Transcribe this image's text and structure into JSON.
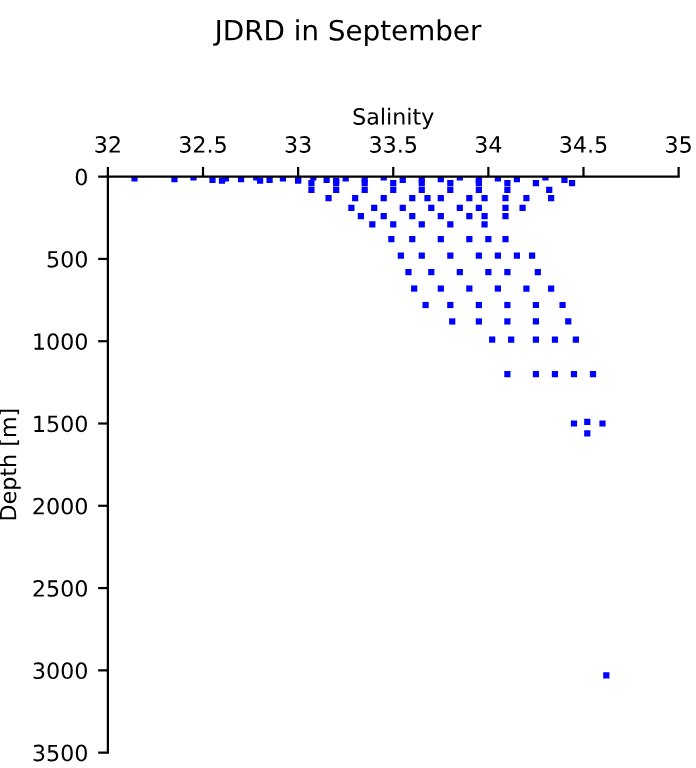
{
  "chart_data": {
    "type": "scatter",
    "title": "JDRD in September",
    "xlabel": "Salinity",
    "ylabel": "Depth [m]",
    "xlim": [
      32,
      35
    ],
    "xticks": [
      32,
      32.5,
      33,
      33.5,
      34,
      34.5,
      35
    ],
    "ylim": [
      3500,
      0
    ],
    "yticks": [
      0,
      500,
      1000,
      1500,
      2000,
      2500,
      3000,
      3500
    ],
    "marker": "square",
    "grid": false,
    "legend": false,
    "series": [
      {
        "color": "#0000ff",
        "x": [
          32.14,
          32.35,
          32.45,
          32.55,
          32.62,
          32.7,
          32.78,
          32.85,
          32.92,
          33.0,
          33.08,
          33.15,
          33.25,
          33.35,
          33.45,
          33.55,
          33.65,
          33.75,
          33.85,
          33.95,
          34.05,
          34.15,
          34.3,
          34.4,
          32.6,
          32.8,
          33.0,
          33.2,
          33.07,
          33.2,
          33.35,
          33.5,
          33.65,
          33.8,
          33.95,
          34.1,
          34.25,
          34.44,
          33.07,
          33.2,
          33.35,
          33.5,
          33.65,
          33.8,
          33.95,
          34.1,
          34.32,
          33.16,
          33.3,
          33.45,
          33.6,
          33.68,
          33.75,
          33.9,
          33.98,
          34.09,
          34.2,
          34.33,
          33.28,
          33.4,
          33.55,
          33.7,
          33.85,
          33.95,
          34.09,
          34.18,
          33.33,
          33.45,
          33.6,
          33.75,
          33.9,
          33.98,
          34.09,
          33.39,
          33.5,
          33.65,
          33.8,
          33.98,
          33.49,
          33.6,
          33.75,
          33.9,
          34.0,
          34.09,
          33.54,
          33.65,
          33.8,
          33.95,
          34.05,
          34.15,
          34.23,
          33.58,
          33.7,
          33.85,
          34.0,
          34.1,
          34.26,
          33.61,
          33.75,
          33.9,
          34.05,
          34.2,
          34.33,
          33.67,
          33.8,
          33.95,
          34.1,
          34.25,
          34.39,
          33.81,
          33.95,
          34.1,
          34.25,
          34.42,
          34.02,
          34.12,
          34.25,
          34.35,
          34.46,
          34.1,
          34.25,
          34.35,
          34.45,
          34.55,
          34.45,
          34.52,
          34.6,
          34.52,
          34.62
        ],
        "values": [
          10,
          15,
          5,
          20,
          10,
          15,
          5,
          20,
          10,
          15,
          5,
          20,
          10,
          15,
          5,
          20,
          10,
          15,
          5,
          20,
          10,
          15,
          5,
          20,
          25,
          25,
          25,
          25,
          40,
          40,
          40,
          40,
          40,
          40,
          40,
          40,
          40,
          40,
          80,
          80,
          80,
          80,
          80,
          80,
          80,
          80,
          80,
          130,
          130,
          130,
          130,
          130,
          130,
          130,
          130,
          130,
          130,
          130,
          190,
          190,
          190,
          190,
          190,
          190,
          190,
          190,
          240,
          240,
          240,
          240,
          240,
          240,
          240,
          290,
          290,
          290,
          290,
          290,
          380,
          380,
          380,
          380,
          380,
          380,
          480,
          480,
          480,
          480,
          480,
          480,
          480,
          580,
          580,
          580,
          580,
          580,
          580,
          680,
          680,
          680,
          680,
          680,
          680,
          780,
          780,
          780,
          780,
          780,
          780,
          880,
          880,
          880,
          880,
          880,
          990,
          990,
          990,
          990,
          990,
          1200,
          1200,
          1200,
          1200,
          1200,
          1500,
          1490,
          1500,
          1560,
          3030
        ]
      }
    ]
  }
}
